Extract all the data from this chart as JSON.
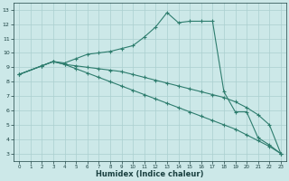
{
  "line1_x": [
    0,
    2,
    3,
    4,
    5,
    6,
    7,
    8,
    9,
    10,
    11,
    12,
    13,
    14,
    15,
    16,
    17,
    18,
    19,
    20,
    21,
    22,
    23
  ],
  "line1_y": [
    8.5,
    9.1,
    9.4,
    9.3,
    9.6,
    9.9,
    10.0,
    10.1,
    10.3,
    10.5,
    11.1,
    11.8,
    12.8,
    12.1,
    12.2,
    12.2,
    12.2,
    7.3,
    5.9,
    5.9,
    4.1,
    3.6,
    3.0
  ],
  "line2_x": [
    0,
    2,
    3,
    4,
    5,
    6,
    7,
    8,
    9,
    10,
    11,
    12,
    13,
    14,
    15,
    16,
    17,
    18,
    19,
    20,
    21,
    22,
    23
  ],
  "line2_y": [
    8.5,
    9.1,
    9.4,
    9.2,
    9.1,
    9.0,
    8.9,
    8.8,
    8.7,
    8.5,
    8.3,
    8.1,
    7.9,
    7.7,
    7.5,
    7.3,
    7.1,
    6.9,
    6.6,
    6.2,
    5.7,
    5.0,
    3.0
  ],
  "line3_x": [
    0,
    2,
    3,
    4,
    5,
    6,
    7,
    8,
    9,
    10,
    11,
    12,
    13,
    14,
    15,
    16,
    17,
    18,
    19,
    20,
    21,
    22,
    23
  ],
  "line3_y": [
    8.5,
    9.1,
    9.4,
    9.2,
    8.9,
    8.6,
    8.3,
    8.0,
    7.7,
    7.4,
    7.1,
    6.8,
    6.5,
    6.2,
    5.9,
    5.6,
    5.3,
    5.0,
    4.7,
    4.3,
    3.9,
    3.5,
    3.0
  ],
  "line_color": "#2e7d6e",
  "marker": "+",
  "bg_color": "#cce8e8",
  "grid_color": "#aacfcf",
  "xlabel": "Humidex (Indice chaleur)",
  "xlabel_fontsize": 6,
  "yticks": [
    3,
    4,
    5,
    6,
    7,
    8,
    9,
    10,
    11,
    12,
    13
  ],
  "xticks": [
    0,
    1,
    2,
    3,
    4,
    5,
    6,
    7,
    8,
    9,
    10,
    11,
    12,
    13,
    14,
    15,
    16,
    17,
    18,
    19,
    20,
    21,
    22,
    23
  ],
  "xlim": [
    -0.5,
    23.5
  ],
  "ylim": [
    2.5,
    13.5
  ]
}
